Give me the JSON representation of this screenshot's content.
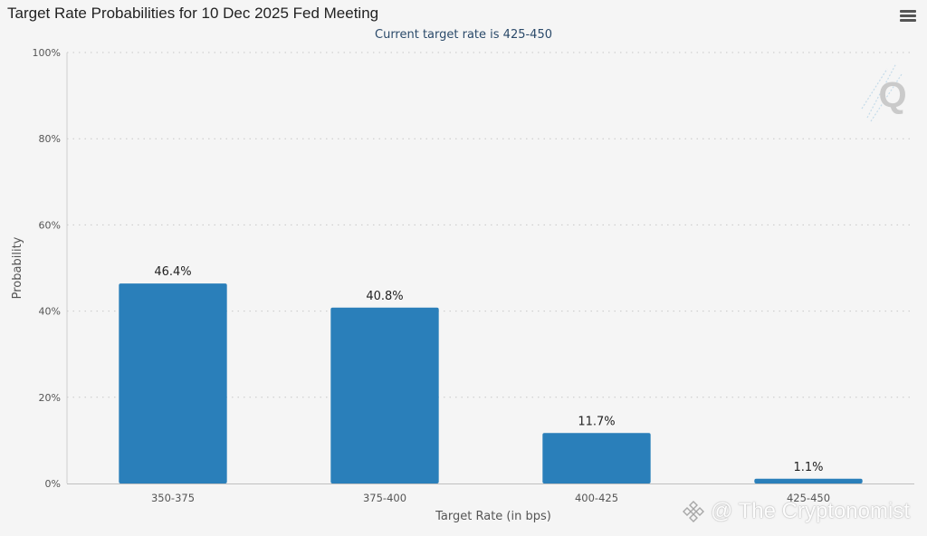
{
  "header": {
    "title": "Target Rate Probabilities for 10 Dec 2025 Fed Meeting",
    "subtitle": "Current target rate is 425-450",
    "menu_icon": "hamburger-menu-icon"
  },
  "watermark": {
    "text": "@ The Cryptonomist",
    "icon": "binance-diamond-icon"
  },
  "logo": {
    "icon": "cme-fedwatch-q-logo-icon",
    "letter": "Q"
  },
  "colors": {
    "bar": "#2a7fba",
    "grid": "#c8c8c8",
    "axis_text": "#555555",
    "label_text": "#222222"
  },
  "chart_data": {
    "type": "bar",
    "categories": [
      "350-375",
      "375-400",
      "400-425",
      "425-450"
    ],
    "values": [
      46.4,
      40.8,
      11.7,
      1.1
    ],
    "data_labels": [
      "46.4%",
      "40.8%",
      "11.7%",
      "1.1%"
    ],
    "title": "Target Rate Probabilities for 10 Dec 2025 Fed Meeting",
    "subtitle": "Current target rate is 425-450",
    "xlabel": "Target Rate (in bps)",
    "ylabel": "Probability",
    "ylim": [
      0,
      100
    ],
    "yticks": [
      0,
      20,
      40,
      60,
      80,
      100
    ],
    "ytick_labels": [
      "0%",
      "20%",
      "40%",
      "60%",
      "80%",
      "100%"
    ],
    "grid": true,
    "legend": false
  }
}
